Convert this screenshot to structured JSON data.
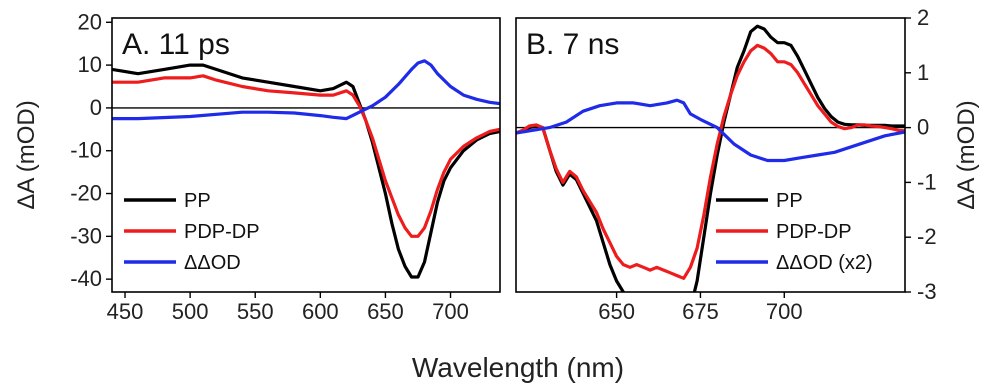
{
  "xlabel": "Wavelength (nm)",
  "chart_data": [
    {
      "type": "line",
      "title": "A. 11 ps",
      "ylabel": "ΔA (mOD)",
      "y_axis_side": "left",
      "xlim": [
        440,
        738
      ],
      "ylim": [
        -43,
        21
      ],
      "xticks": [
        450,
        500,
        550,
        600,
        650,
        700
      ],
      "yticks": [
        20,
        10,
        0,
        -10,
        -20,
        -30,
        -40
      ],
      "zero_line": true,
      "legend_position": "bottom-left",
      "series": [
        {
          "name": "PP",
          "color": "#000000",
          "x": [
            440,
            460,
            480,
            500,
            510,
            520,
            540,
            560,
            580,
            600,
            610,
            620,
            625,
            630,
            635,
            640,
            645,
            650,
            655,
            660,
            665,
            670,
            675,
            680,
            685,
            690,
            695,
            700,
            710,
            720,
            730,
            738
          ],
          "y": [
            9,
            8,
            9,
            10,
            10,
            9,
            7,
            6,
            5,
            4,
            4.5,
            6,
            5,
            1,
            -3,
            -8,
            -14,
            -20,
            -27,
            -33,
            -37,
            -39.5,
            -39.5,
            -36,
            -29,
            -22,
            -17,
            -14,
            -10,
            -7.5,
            -6,
            -5.5
          ]
        },
        {
          "name": "PDP-DP",
          "color": "#ee1c1c",
          "x": [
            440,
            460,
            480,
            500,
            510,
            520,
            540,
            560,
            580,
            600,
            610,
            620,
            625,
            630,
            635,
            640,
            645,
            650,
            655,
            660,
            665,
            670,
            675,
            680,
            685,
            690,
            695,
            700,
            710,
            720,
            730,
            738
          ],
          "y": [
            6,
            6,
            7,
            7,
            7.5,
            6.5,
            5,
            4,
            3.5,
            3,
            3,
            4,
            3,
            0.5,
            -3,
            -7,
            -12,
            -17,
            -21,
            -25,
            -28,
            -30,
            -30,
            -28,
            -24,
            -19,
            -15,
            -12,
            -9,
            -7,
            -5.5,
            -5
          ]
        },
        {
          "name": "ΔΔOD",
          "color": "#1f2be8",
          "x": [
            440,
            460,
            500,
            540,
            560,
            580,
            600,
            610,
            620,
            630,
            640,
            650,
            660,
            670,
            675,
            680,
            685,
            690,
            700,
            710,
            720,
            730,
            738
          ],
          "y": [
            -2.5,
            -2.5,
            -2,
            -1,
            -1,
            -1.2,
            -1.8,
            -2.2,
            -2.5,
            -1,
            0.5,
            2.5,
            5.5,
            9,
            10.5,
            11,
            10,
            8,
            5,
            3,
            2,
            1.3,
            1
          ]
        }
      ]
    },
    {
      "type": "line",
      "title": "B. 7 ns",
      "ylabel": "ΔA (mOD)",
      "y_axis_side": "right",
      "xlim": [
        620,
        736
      ],
      "ylim": [
        -3,
        2
      ],
      "xticks": [
        650,
        675,
        700
      ],
      "yticks": [
        2,
        1,
        0,
        -1,
        -2,
        -3
      ],
      "zero_line": true,
      "legend_position": "bottom-right",
      "series": [
        {
          "name": "PP",
          "color": "#000000",
          "x": [
            620,
            622,
            624,
            626,
            628,
            630,
            632,
            634,
            636,
            638,
            640,
            642,
            644,
            646,
            648,
            650,
            652,
            654,
            656,
            658,
            660,
            662,
            664,
            666,
            668,
            670,
            672,
            674,
            676,
            678,
            680,
            682,
            684,
            686,
            688,
            690,
            692,
            694,
            696,
            698,
            700,
            702,
            704,
            706,
            708,
            710,
            712,
            714,
            716,
            718,
            720,
            722,
            724,
            726,
            728,
            730,
            732,
            734,
            736
          ],
          "y": [
            -0.1,
            -0.05,
            0,
            0.03,
            0,
            -0.4,
            -0.8,
            -1.05,
            -0.85,
            -0.95,
            -1.2,
            -1.45,
            -1.7,
            -2.1,
            -2.5,
            -2.8,
            -3,
            -3.2,
            -3.3,
            -3.35,
            -3.25,
            -3.3,
            -3.35,
            -3.3,
            -3.4,
            -3.5,
            -3.3,
            -2.8,
            -2,
            -1.2,
            -0.5,
            0.1,
            0.6,
            1.1,
            1.4,
            1.75,
            1.85,
            1.8,
            1.65,
            1.55,
            1.55,
            1.5,
            1.3,
            1.05,
            0.8,
            0.55,
            0.35,
            0.2,
            0.1,
            0.06,
            0.05,
            0.05,
            0.04,
            0.04,
            0.04,
            0.04,
            0.03,
            0.03,
            0.03
          ]
        },
        {
          "name": "PDP-DP",
          "color": "#ee1c1c",
          "x": [
            620,
            622,
            624,
            626,
            628,
            630,
            632,
            634,
            636,
            638,
            640,
            642,
            644,
            646,
            648,
            650,
            652,
            654,
            656,
            658,
            660,
            662,
            664,
            666,
            668,
            670,
            672,
            674,
            676,
            678,
            680,
            682,
            684,
            686,
            688,
            690,
            692,
            694,
            696,
            698,
            700,
            702,
            704,
            706,
            708,
            710,
            712,
            714,
            716,
            718,
            720,
            722,
            724,
            726,
            728,
            730,
            732,
            734,
            736
          ],
          "y": [
            -0.1,
            -0.05,
            0.03,
            0.05,
            0,
            -0.4,
            -0.75,
            -1.0,
            -0.8,
            -0.9,
            -1.15,
            -1.35,
            -1.55,
            -1.85,
            -2.1,
            -2.35,
            -2.5,
            -2.55,
            -2.5,
            -2.55,
            -2.6,
            -2.55,
            -2.6,
            -2.65,
            -2.7,
            -2.75,
            -2.55,
            -2.2,
            -1.6,
            -0.9,
            -0.3,
            0.2,
            0.6,
            0.95,
            1.2,
            1.4,
            1.5,
            1.45,
            1.35,
            1.2,
            1.2,
            1.15,
            1.0,
            0.8,
            0.6,
            0.4,
            0.25,
            0.1,
            0.02,
            -0.02,
            0,
            0.05,
            0.05,
            0.03,
            0.02,
            0,
            -0.02,
            -0.05,
            -0.06
          ]
        },
        {
          "name": "ΔΔOD (x2)",
          "color": "#1f2be8",
          "x": [
            620,
            625,
            630,
            635,
            640,
            645,
            650,
            655,
            660,
            665,
            668,
            670,
            672,
            675,
            680,
            685,
            690,
            695,
            700,
            705,
            710,
            715,
            720,
            725,
            730,
            736
          ],
          "y": [
            -0.1,
            -0.05,
            0,
            0.1,
            0.3,
            0.4,
            0.45,
            0.45,
            0.4,
            0.45,
            0.5,
            0.45,
            0.25,
            0.15,
            0,
            -0.3,
            -0.5,
            -0.6,
            -0.6,
            -0.55,
            -0.5,
            -0.45,
            -0.35,
            -0.25,
            -0.15,
            -0.08
          ]
        }
      ]
    }
  ]
}
